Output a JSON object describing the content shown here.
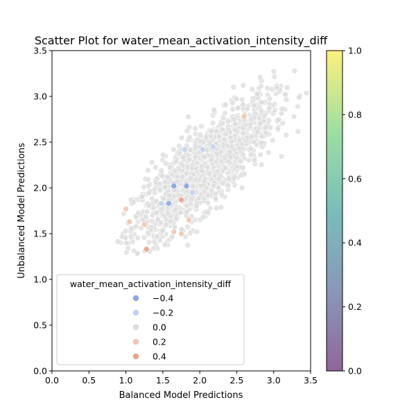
{
  "chart_data": {
    "type": "scatter",
    "title": "Scatter Plot for water_mean_activation_intensity_diff",
    "xlabel": "Balanced Model Predictions",
    "ylabel": "Unbalanced Model Predictions",
    "xlim": [
      0.0,
      3.5
    ],
    "ylim": [
      0.0,
      3.5
    ],
    "x_ticks": [
      "0.0",
      "0.5",
      "1.0",
      "1.5",
      "2.0",
      "2.5",
      "3.0",
      "3.5"
    ],
    "y_ticks": [
      "0.0",
      "0.5",
      "1.0",
      "1.5",
      "2.0",
      "2.5",
      "3.0",
      "3.5"
    ],
    "grid": false,
    "hue": "water_mean_activation_intensity_diff",
    "legend": {
      "title": "water_mean_activation_intensity_diff",
      "placement": "lower-left",
      "entries": [
        {
          "label": "−0.4",
          "color": "#8ea6e8"
        },
        {
          "label": "−0.2",
          "color": "#c2d1f2"
        },
        {
          "label": "0.0",
          "color": "#dddcdc"
        },
        {
          "label": "0.2",
          "color": "#f0c6b2"
        },
        {
          "label": "0.4",
          "color": "#eba28c"
        }
      ]
    },
    "colorbar": {
      "range": [
        0.0,
        1.0
      ],
      "ticks": [
        "0.0",
        "0.2",
        "0.4",
        "0.6",
        "0.8",
        "1.0"
      ],
      "colormap": "viridis",
      "alpha": 0.6
    },
    "point_cloud": {
      "description_free": true,
      "n": 1500,
      "x_mean": 2.05,
      "y_mean": 2.2,
      "x_sd": 0.47,
      "y_sd": 0.38,
      "corr": 0.82
    },
    "highlighted_points": [
      {
        "x": 1.65,
        "y": 2.03,
        "hue": -0.4
      },
      {
        "x": 1.65,
        "y": 2.02,
        "hue": -0.4
      },
      {
        "x": 1.82,
        "y": 2.03,
        "hue": -0.4
      },
      {
        "x": 1.82,
        "y": 2.02,
        "hue": -0.4
      },
      {
        "x": 1.58,
        "y": 1.83,
        "hue": -0.4
      },
      {
        "x": 1.8,
        "y": 2.42,
        "hue": -0.2
      },
      {
        "x": 2.04,
        "y": 2.42,
        "hue": -0.2
      },
      {
        "x": 1.48,
        "y": 1.83,
        "hue": -0.2
      },
      {
        "x": 1.9,
        "y": 1.95,
        "hue": -0.2
      },
      {
        "x": 2.18,
        "y": 2.45,
        "hue": -0.2
      },
      {
        "x": 1.28,
        "y": 1.33,
        "hue": 0.4
      },
      {
        "x": 1.0,
        "y": 1.77,
        "hue": 0.2
      },
      {
        "x": 1.05,
        "y": 1.63,
        "hue": 0.2
      },
      {
        "x": 1.75,
        "y": 1.87,
        "hue": 0.4
      },
      {
        "x": 1.75,
        "y": 1.5,
        "hue": 0.2
      },
      {
        "x": 1.65,
        "y": 1.52,
        "hue": 0.2
      },
      {
        "x": 2.6,
        "y": 2.78,
        "hue": 0.2
      },
      {
        "x": 1.85,
        "y": 1.65,
        "hue": 0.2
      },
      {
        "x": 1.25,
        "y": 1.6,
        "hue": 0.2
      }
    ]
  }
}
